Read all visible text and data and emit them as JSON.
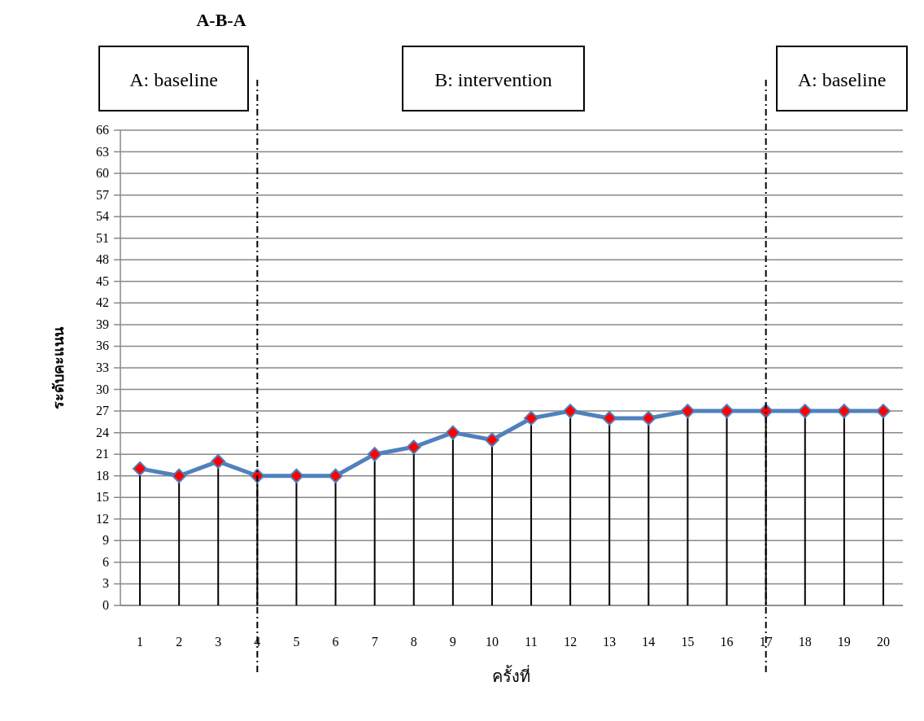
{
  "chart_data": {
    "type": "line",
    "title": "A-B-A",
    "xlabel": "ครั้งที่",
    "ylabel": "ระดับคะแนน",
    "categories": [
      "1",
      "2",
      "3",
      "4",
      "5",
      "6",
      "7",
      "8",
      "9",
      "10",
      "11",
      "12",
      "13",
      "14",
      "15",
      "16",
      "17",
      "18",
      "19",
      "20"
    ],
    "series": [
      {
        "color": "#4f81bd",
        "values": [
          19,
          18,
          20,
          18,
          18,
          18,
          21,
          22,
          24,
          23,
          26,
          27,
          26,
          26,
          27,
          27,
          27,
          27,
          27,
          27
        ]
      },
      {
        "type": "lollipop",
        "color": "#ff0000",
        "values": [
          19,
          18,
          20,
          18,
          18,
          18,
          21,
          22,
          24,
          23,
          26,
          27,
          26,
          26,
          27,
          27,
          27,
          27,
          27,
          27
        ]
      }
    ],
    "ylim": [
      0,
      66
    ],
    "yticks": [
      0,
      3,
      6,
      9,
      12,
      15,
      18,
      21,
      24,
      27,
      30,
      33,
      36,
      39,
      42,
      45,
      48,
      51,
      54,
      57,
      60,
      63,
      66
    ],
    "grid": "y",
    "legend": false,
    "line_style": "solid",
    "ref_lines": [
      {
        "axis": "x",
        "value": "4",
        "color": "#000000",
        "line_style": "dashed"
      },
      {
        "axis": "x",
        "value": "17",
        "color": "#000000",
        "line_style": "dashed"
      }
    ],
    "annotations": [
      "A: baseline",
      "B: intervention",
      "A: baseline"
    ]
  }
}
